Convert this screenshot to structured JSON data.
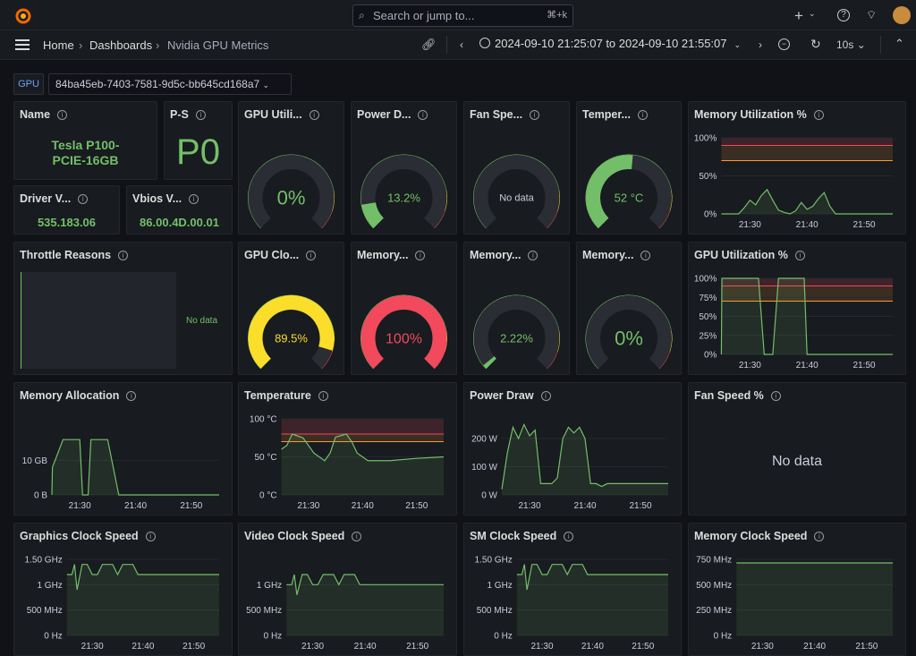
{
  "topbar": {
    "search_placeholder": "Search or jump to...",
    "search_shortcut": "⌘+k",
    "plus": "+"
  },
  "breadcrumb": {
    "home": "Home",
    "dashboards": "Dashboards",
    "current": "Nvidia GPU Metrics"
  },
  "time": {
    "range": "2024-09-10 21:25:07 to 2024-09-10 21:55:07",
    "refresh": "10s"
  },
  "variable": {
    "label": "GPU",
    "value": "84ba45eb-7403-7581-9d5c-bb645cd168a7"
  },
  "colors": {
    "green": "#73bf69",
    "yellow": "#fade2a",
    "red": "#f2495c",
    "orange": "#ff9830"
  },
  "stats": {
    "name": {
      "title": "Name",
      "line1": "Tesla P100-",
      "line2": "PCIE-16GB"
    },
    "pstate": {
      "title": "P-S",
      "value": "P0"
    },
    "driver": {
      "title": "Driver V...",
      "value": "535.183.06"
    },
    "vbios": {
      "title": "Vbios V...",
      "value": "86.00.4D.00.01"
    }
  },
  "gauges": {
    "gpu_util": {
      "title": "GPU Utili...",
      "text": "0%",
      "value": 0
    },
    "power": {
      "title": "Power D...",
      "text": "13.2%",
      "value": 13.2
    },
    "fan": {
      "title": "Fan Spe...",
      "text": "No data",
      "value": null
    },
    "temp": {
      "title": "Temper...",
      "text": "52 °C",
      "value": 52
    },
    "gpu_clock": {
      "title": "GPU Clo...",
      "text": "89.5%",
      "value": 89.5
    },
    "mem1": {
      "title": "Memory...",
      "text": "100%",
      "value": 100
    },
    "mem2": {
      "title": "Memory...",
      "text": "2.22%",
      "value": 2.22
    },
    "mem3": {
      "title": "Memory...",
      "text": "0%",
      "value": 0
    }
  },
  "panels": {
    "throttle": {
      "title": "Throttle Reasons",
      "nodata": "No data"
    },
    "fan_pct": {
      "title": "Fan Speed %",
      "nodata": "No data"
    }
  },
  "chart_data": [
    {
      "id": "mem_util",
      "type": "line",
      "title": "Memory Utilization %",
      "y_ticks": [
        "100%",
        "50%",
        "0%"
      ],
      "ylim": [
        0,
        100
      ],
      "x_ticks": [
        "21:30",
        "21:40",
        "21:50"
      ],
      "thresholds": [
        70,
        90
      ],
      "x": [
        0,
        2,
        3,
        4,
        5,
        6,
        7,
        8,
        9,
        10,
        11,
        12,
        13,
        14,
        15,
        16,
        17,
        18,
        19,
        20,
        30
      ],
      "values": [
        0,
        0,
        0,
        8,
        18,
        12,
        24,
        32,
        18,
        5,
        2,
        0,
        4,
        15,
        6,
        10,
        20,
        28,
        10,
        0,
        0
      ]
    },
    {
      "id": "gpu_util_ts",
      "type": "line",
      "title": "GPU Utilization %",
      "y_ticks": [
        "100%",
        "75%",
        "50%",
        "25%",
        "0%"
      ],
      "ylim": [
        0,
        100
      ],
      "x_ticks": [
        "21:30",
        "21:40",
        "21:50"
      ],
      "thresholds": [
        70,
        90
      ],
      "x": [
        0,
        0.1,
        1,
        6.5,
        7.5,
        9,
        10,
        14.5,
        15,
        30
      ],
      "values": [
        0,
        100,
        100,
        100,
        0,
        0,
        100,
        100,
        0,
        0
      ]
    },
    {
      "id": "mem_alloc",
      "type": "line",
      "title": "Memory Allocation",
      "y_ticks": [
        "10 GB",
        "0 B"
      ],
      "ylim": [
        0,
        22
      ],
      "x_ticks": [
        "21:30",
        "21:40",
        "21:50"
      ],
      "x": [
        0,
        0.1,
        2,
        5,
        5.5,
        6.5,
        7,
        10,
        12,
        13,
        30
      ],
      "values": [
        0,
        8,
        16,
        16,
        0,
        0,
        16,
        16,
        0,
        0,
        0
      ]
    },
    {
      "id": "temp_ts",
      "type": "line",
      "title": "Temperature",
      "y_ticks": [
        "100 °C",
        "50 °C",
        "0 °C"
      ],
      "ylim": [
        0,
        100
      ],
      "x_ticks": [
        "21:30",
        "21:40",
        "21:50"
      ],
      "thresholds": [
        70,
        80
      ],
      "x": [
        0,
        1,
        2,
        4,
        6,
        8,
        9,
        10,
        12,
        13,
        14,
        15,
        16,
        20,
        25,
        30
      ],
      "values": [
        60,
        65,
        80,
        75,
        55,
        45,
        55,
        76,
        80,
        70,
        55,
        50,
        45,
        45,
        48,
        50
      ]
    },
    {
      "id": "power_ts",
      "type": "line",
      "title": "Power Draw",
      "y_ticks": [
        "200 W",
        "100 W",
        "0 W"
      ],
      "ylim": [
        0,
        270
      ],
      "x_ticks": [
        "21:30",
        "21:40",
        "21:50"
      ],
      "x": [
        0,
        1,
        2,
        3,
        4,
        5,
        6,
        7,
        8,
        9,
        10,
        11,
        12,
        13,
        14,
        15,
        16,
        17,
        18,
        19,
        20,
        25,
        30
      ],
      "values": [
        20,
        150,
        240,
        200,
        250,
        210,
        230,
        40,
        40,
        40,
        60,
        200,
        240,
        220,
        240,
        200,
        40,
        40,
        30,
        40,
        40,
        40,
        40
      ]
    },
    {
      "id": "gfx_clock",
      "type": "line",
      "title": "Graphics Clock Speed",
      "y_ticks": [
        "1.50 GHz",
        "1 GHz",
        "500 MHz",
        "0 Hz"
      ],
      "ylim": [
        0,
        1.5
      ],
      "x_ticks": [
        "21:30",
        "21:40",
        "21:50"
      ],
      "x": [
        0,
        1,
        1.5,
        2,
        3,
        4,
        5,
        6,
        7,
        8,
        9,
        10,
        11,
        12,
        13,
        14,
        15,
        30
      ],
      "values": [
        1.2,
        1.2,
        1.4,
        0.9,
        1.4,
        1.4,
        1.2,
        1.2,
        1.4,
        1.4,
        1.4,
        1.2,
        1.4,
        1.4,
        1.4,
        1.2,
        1.2,
        1.2
      ]
    },
    {
      "id": "video_clock",
      "type": "line",
      "title": "Video Clock Speed",
      "y_ticks": [
        "1 GHz",
        "500 MHz",
        "0 Hz"
      ],
      "ylim": [
        0,
        1.5
      ],
      "x_ticks": [
        "21:30",
        "21:40",
        "21:50"
      ],
      "x": [
        0,
        1,
        1.5,
        2,
        3,
        4,
        5,
        6,
        7,
        8,
        9,
        10,
        11,
        12,
        13,
        14,
        15,
        30
      ],
      "values": [
        1.0,
        1.0,
        1.2,
        0.8,
        1.2,
        1.2,
        1.0,
        1.0,
        1.2,
        1.2,
        1.2,
        1.0,
        1.2,
        1.2,
        1.2,
        1.0,
        1.0,
        1.0
      ]
    },
    {
      "id": "sm_clock",
      "type": "line",
      "title": "SM Clock Speed",
      "y_ticks": [
        "1.50 GHz",
        "1 GHz",
        "500 MHz",
        "0 Hz"
      ],
      "ylim": [
        0,
        1.5
      ],
      "x_ticks": [
        "21:30",
        "21:40",
        "21:50"
      ],
      "x": [
        0,
        1,
        1.5,
        2,
        3,
        4,
        5,
        6,
        7,
        8,
        9,
        10,
        11,
        12,
        13,
        14,
        15,
        30
      ],
      "values": [
        1.2,
        1.2,
        1.4,
        0.9,
        1.4,
        1.4,
        1.2,
        1.2,
        1.4,
        1.4,
        1.4,
        1.2,
        1.4,
        1.4,
        1.4,
        1.2,
        1.2,
        1.2
      ]
    },
    {
      "id": "mem_clock",
      "type": "line",
      "title": "Memory Clock Speed",
      "y_ticks": [
        "750 MHz",
        "500 MHz",
        "250 MHz",
        "0 Hz"
      ],
      "ylim": [
        0,
        750
      ],
      "x_ticks": [
        "21:30",
        "21:40",
        "21:50"
      ],
      "x": [
        0,
        30
      ],
      "values": [
        715,
        715
      ]
    }
  ]
}
